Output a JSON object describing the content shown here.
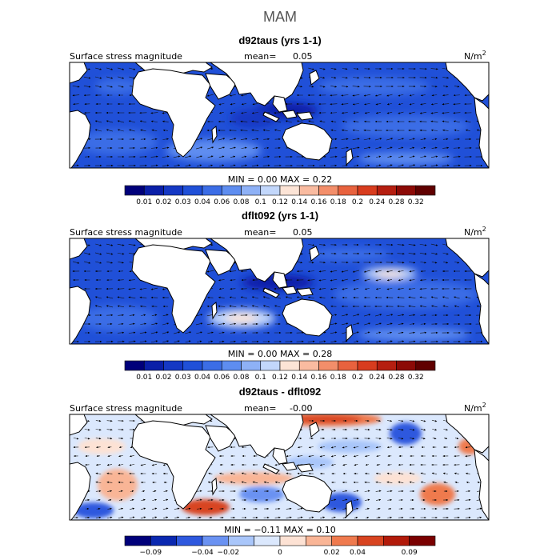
{
  "season": "MAM",
  "chart_data": [
    {
      "type": "heatmap",
      "title": "d92taus (yrs 1-1)",
      "left_label": "Surface stress magnitude",
      "mean_label": "mean=",
      "mean_value": "0.05",
      "units": "N/m",
      "units_exp": "2",
      "stats_text": "MIN =    0.00  MAX =    0.22",
      "min": 0.0,
      "max": 0.22,
      "colorbar_levels": [
        0.01,
        0.02,
        0.03,
        0.04,
        0.06,
        0.08,
        0.1,
        0.12,
        0.14,
        0.16,
        0.18,
        0.2,
        0.24,
        0.28,
        0.32
      ],
      "colorbar_labels": [
        "0.01",
        "0.02",
        "0.03",
        "0.04",
        "0.06",
        "0.08",
        "0.1",
        "0.12",
        "0.14",
        "0.16",
        "0.18",
        "0.2",
        "0.24",
        "0.28",
        "0.32"
      ]
    },
    {
      "type": "heatmap",
      "title": "dflt092 (yrs 1-1)",
      "left_label": "Surface stress magnitude",
      "mean_label": "mean=",
      "mean_value": "0.05",
      "units": "N/m",
      "units_exp": "2",
      "stats_text": "MIN =    0.00  MAX =    0.28",
      "min": 0.0,
      "max": 0.28,
      "colorbar_levels": [
        0.01,
        0.02,
        0.03,
        0.04,
        0.06,
        0.08,
        0.1,
        0.12,
        0.14,
        0.16,
        0.18,
        0.2,
        0.24,
        0.28,
        0.32
      ],
      "colorbar_labels": [
        "0.01",
        "0.02",
        "0.03",
        "0.04",
        "0.06",
        "0.08",
        "0.1",
        "0.12",
        "0.14",
        "0.16",
        "0.18",
        "0.2",
        "0.24",
        "0.28",
        "0.32"
      ]
    },
    {
      "type": "heatmap",
      "title": "d92taus - dflt092",
      "left_label": "Surface stress magnitude",
      "mean_label": "mean=",
      "mean_value": "-0.00",
      "units": "N/m",
      "units_exp": "2",
      "stats_text": "MIN =   −0.11  MAX =    0.10",
      "min": -0.11,
      "max": 0.1,
      "colorbar_levels": [
        -0.09,
        -0.04,
        -0.02,
        0,
        0.02,
        0.04,
        0.09
      ],
      "colorbar_labels": [
        "−0.09",
        "−0.04",
        "−0.02",
        "0",
        "0.02",
        "0.04",
        "0.09"
      ]
    }
  ],
  "colors": {
    "seq": [
      "#00007a",
      "#0a1fa8",
      "#1538c4",
      "#2050d8",
      "#3b6de6",
      "#5e8df0",
      "#8eb1f6",
      "#c2d7fb",
      "#fce4d6",
      "#f9bba0",
      "#f38e6a",
      "#e8623e",
      "#d83c1e",
      "#b51e10",
      "#8c0a06",
      "#600000"
    ],
    "div": [
      "#00007a",
      "#0a28b0",
      "#2e58de",
      "#6a92f2",
      "#a9c6fa",
      "#dbe8fd",
      "#fde2d4",
      "#f9b596",
      "#ef7a4e",
      "#d84420",
      "#b21a0a",
      "#7a0000"
    ],
    "land": "#ffffff",
    "coast": "#000000"
  }
}
